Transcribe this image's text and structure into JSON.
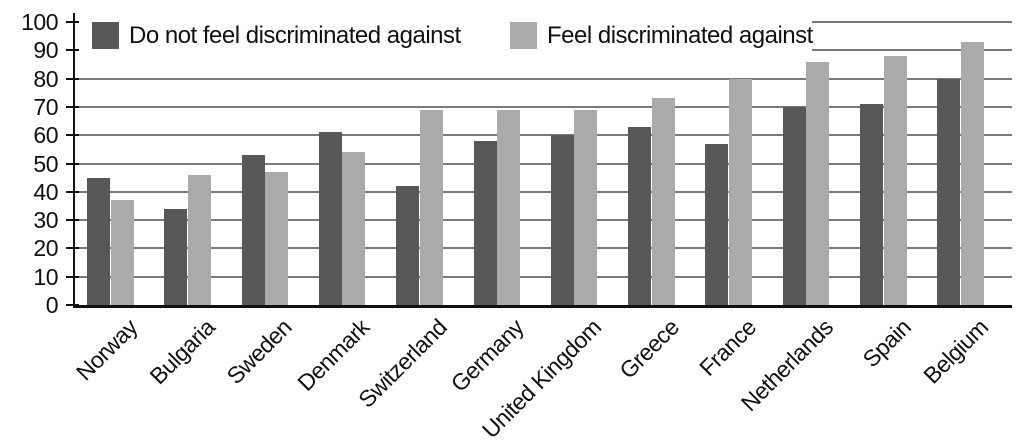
{
  "chart_data": {
    "type": "bar",
    "title": "",
    "xlabel": "",
    "ylabel": "",
    "categories": [
      "Norway",
      "Bulgaria",
      "Sweden",
      "Denmark",
      "Switzerland",
      "Germany",
      "United Kingdom",
      "Greece",
      "France",
      "Netherlands",
      "Spain",
      "Belgium"
    ],
    "series": [
      {
        "name": "Do not feel discriminated against",
        "color": "#58585a",
        "values": [
          45,
          34,
          53,
          61,
          42,
          58,
          60,
          63,
          57,
          70,
          71,
          80
        ]
      },
      {
        "name": "Feel discriminated against",
        "color": "#a9aaac",
        "values": [
          37,
          46,
          47,
          54,
          69,
          69,
          69,
          73,
          80,
          86,
          88,
          93
        ]
      }
    ],
    "ylim": [
      0,
      100
    ],
    "yticks": [
      0,
      10,
      20,
      30,
      40,
      50,
      60,
      70,
      80,
      90,
      100
    ],
    "grid": "horizontal",
    "legend_position": "top-inside",
    "bar_orientation": "vertical"
  },
  "colors": {
    "dark_series": "#58585a",
    "light_series": "#a9aaac",
    "gridline": "#7a7a7a",
    "axis": "#111111",
    "background": "#ffffff"
  }
}
